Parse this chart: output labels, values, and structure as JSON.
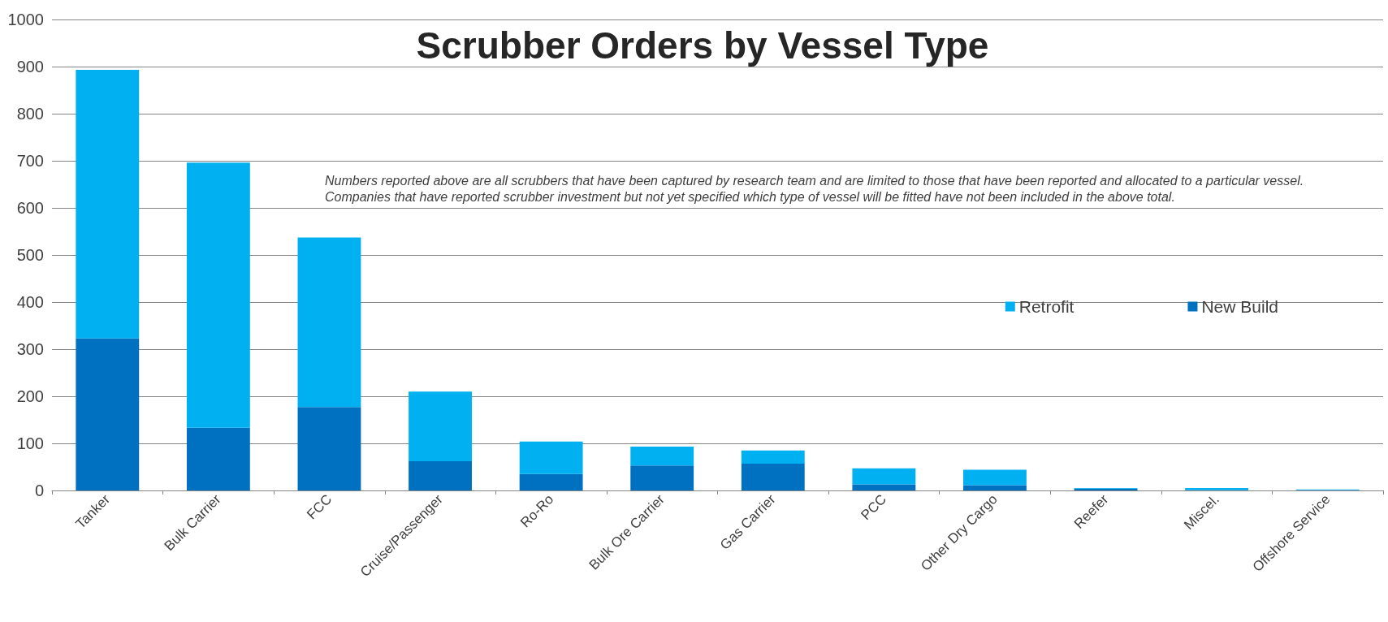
{
  "chart_data": {
    "type": "bar",
    "title": "Scrubber Orders by Vessel Type",
    "categories": [
      "Tanker",
      "Bulk Carrier",
      "FCC",
      "Cruise/Passenger",
      "Ro-Ro",
      "Bulk Ore Carrier",
      "Gas Carrier",
      "PCC",
      "Other Dry Cargo",
      "Reefer",
      "Miscel.",
      "Offshore Service"
    ],
    "series": [
      {
        "name": "New Build",
        "color": "#0070c0",
        "values": [
          323,
          133,
          177,
          62,
          35,
          53,
          57,
          13,
          11,
          4,
          1,
          1
        ]
      },
      {
        "name": "Retrofit",
        "color": "#00b0f0",
        "values": [
          570,
          563,
          360,
          148,
          69,
          40,
          28,
          34,
          33,
          1,
          4,
          1
        ]
      }
    ],
    "stacked": true,
    "ylim": [
      0,
      1000
    ],
    "yticks": [
      0,
      100,
      200,
      300,
      400,
      500,
      600,
      700,
      800,
      900,
      1000
    ],
    "grid": "y",
    "legend": "right",
    "annotations": [
      "Numbers reported above are all scrubbers that have been captured by research team and are limited to those that have been reported and allocated to a particular vessel. Companies that have reported scrubber investment but not yet specified which type of vessel will be fitted have not been included in the above total."
    ]
  }
}
